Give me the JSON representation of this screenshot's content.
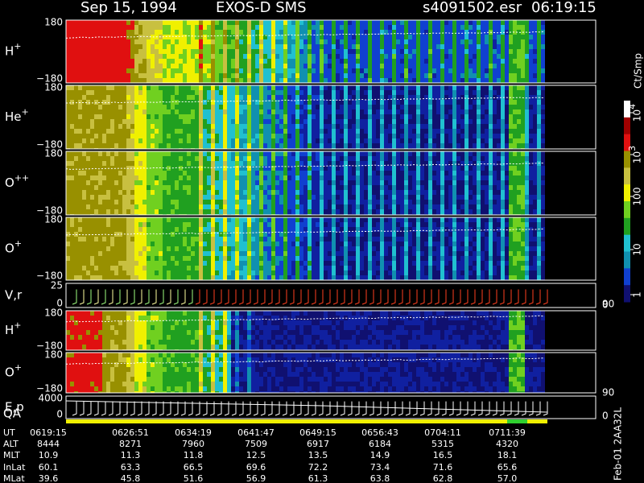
{
  "header": {
    "date": "Sep 15, 1994",
    "instrument": "EXOS-D SMS",
    "file": "s4091502.esr",
    "time": "06:19:15"
  },
  "panels": [
    {
      "label": "H",
      "charge": "+",
      "top": "180",
      "bottom": "−180"
    },
    {
      "label": "He",
      "charge": "+",
      "top": "180",
      "bottom": "−180"
    },
    {
      "label": "O",
      "charge": "++",
      "top": "180",
      "bottom": "−180"
    },
    {
      "label": "O",
      "charge": "+",
      "top": "180",
      "bottom": "−180"
    },
    {
      "label": "V,r",
      "top": "25",
      "bottom": "0",
      "right_top": "90",
      "right_bottom": "0"
    },
    {
      "label": "H",
      "charge": "+",
      "top": "180",
      "bottom": "−180"
    },
    {
      "label": "O",
      "charge": "+",
      "top": "180",
      "bottom": "−180"
    },
    {
      "label": "E,p",
      "top": "4000",
      "bottom": "0",
      "right_top": "90",
      "right_bottom": "0"
    }
  ],
  "qa_label": "QA",
  "colorbar": {
    "unit": "Ct/Smp",
    "ticks": [
      {
        "base": "10",
        "exp": "4"
      },
      {
        "base": "10",
        "exp": "3"
      },
      {
        "base": "100"
      },
      {
        "base": "10"
      },
      {
        "base": "1"
      }
    ]
  },
  "table": {
    "rows": [
      {
        "label": "UT",
        "values": [
          "0619:15",
          "0626:51",
          "0634:19",
          "0641:47",
          "0649:15",
          "0656:43",
          "0704:11",
          "0711:39"
        ]
      },
      {
        "label": "ALT",
        "values": [
          "8444",
          "8271",
          "7960",
          "7509",
          "6917",
          "6184",
          "5315",
          "4320"
        ]
      },
      {
        "label": "MLT",
        "values": [
          "10.9",
          "11.3",
          "11.8",
          "12.5",
          "13.5",
          "14.9",
          "16.5",
          "18.1"
        ]
      },
      {
        "label": "InLat",
        "values": [
          "60.1",
          "63.3",
          "66.5",
          "69.6",
          "72.2",
          "73.4",
          "71.6",
          "65.6"
        ]
      },
      {
        "label": "MLat",
        "values": [
          "39.6",
          "45.8",
          "51.6",
          "56.9",
          "61.3",
          "63.8",
          "62.8",
          "57.0"
        ]
      }
    ]
  },
  "footer": "Feb-01 2AA32L"
}
